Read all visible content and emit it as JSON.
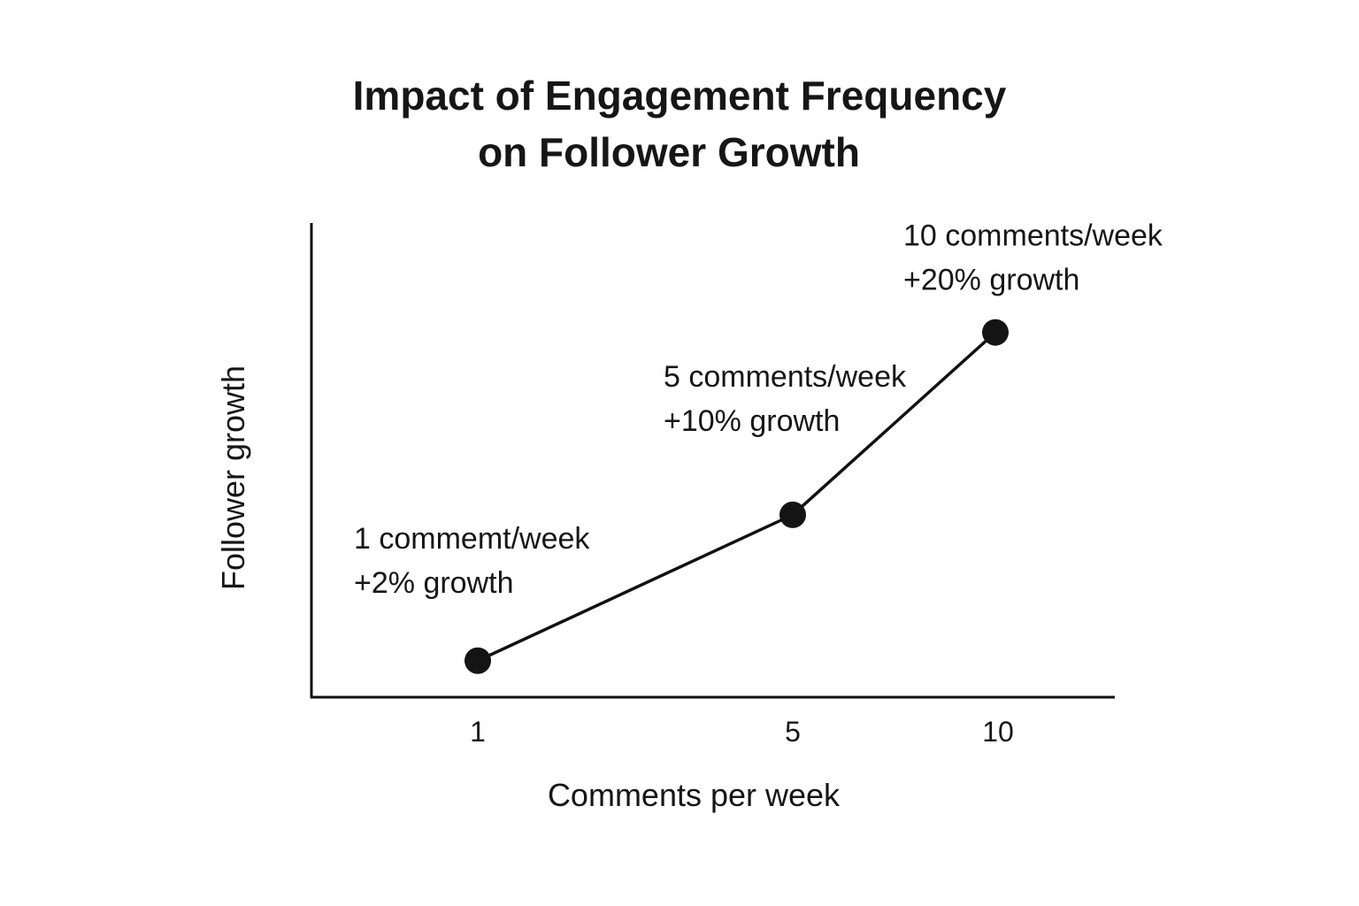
{
  "colors": {
    "background": "#ffffff",
    "ink": "#141414"
  },
  "chart_data": {
    "type": "line",
    "title": [
      "Impact of Engagement Frequency",
      "on Follower Growth"
    ],
    "xlabel": "Comments per week",
    "ylabel": "Follower growth",
    "x_ticks": [
      "1",
      "5",
      "10"
    ],
    "ylim": [
      0,
      26
    ],
    "grid": false,
    "legend": "none",
    "series": [
      {
        "x": [
          1,
          5,
          10
        ],
        "y": [
          2,
          10,
          20
        ],
        "annotations": [
          [
            "1 commemt/week",
            "+2% growth"
          ],
          [
            "5 comments/week",
            "+10% growth"
          ],
          [
            "10 comments/week",
            "+20% growth"
          ]
        ]
      }
    ]
  }
}
